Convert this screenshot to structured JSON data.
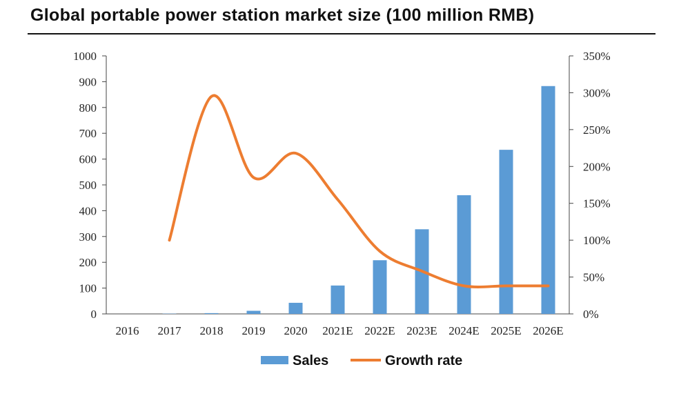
{
  "title": "Global portable power station market size (100 million RMB)",
  "chart_data": {
    "type": "bar",
    "categories": [
      "2016",
      "2017",
      "2018",
      "2019",
      "2020",
      "2021E",
      "2022E",
      "2023E",
      "2024E",
      "2025E",
      "2026E"
    ],
    "series": [
      {
        "name": "Sales",
        "type": "bar",
        "axis": "left",
        "color": "#5b9bd5",
        "values": [
          0,
          1,
          3,
          12,
          43,
          110,
          208,
          328,
          460,
          636,
          883
        ]
      },
      {
        "name": "Growth rate",
        "type": "line",
        "axis": "right",
        "color": "#ed7d31",
        "values": [
          null,
          100,
          295,
          185,
          218,
          155,
          85,
          58,
          38,
          38,
          38
        ]
      }
    ],
    "y_left": {
      "min": 0,
      "max": 1000,
      "ticks": [
        "0",
        "100",
        "200",
        "300",
        "400",
        "500",
        "600",
        "700",
        "800",
        "900",
        "1000"
      ]
    },
    "y_right": {
      "min": 0,
      "max": 350,
      "unit": "%",
      "ticks": [
        "0%",
        "50%",
        "100%",
        "150%",
        "200%",
        "250%",
        "300%",
        "350%"
      ]
    },
    "legend": {
      "position": "bottom",
      "items": [
        "Sales",
        "Growth rate"
      ]
    },
    "grid": false
  }
}
